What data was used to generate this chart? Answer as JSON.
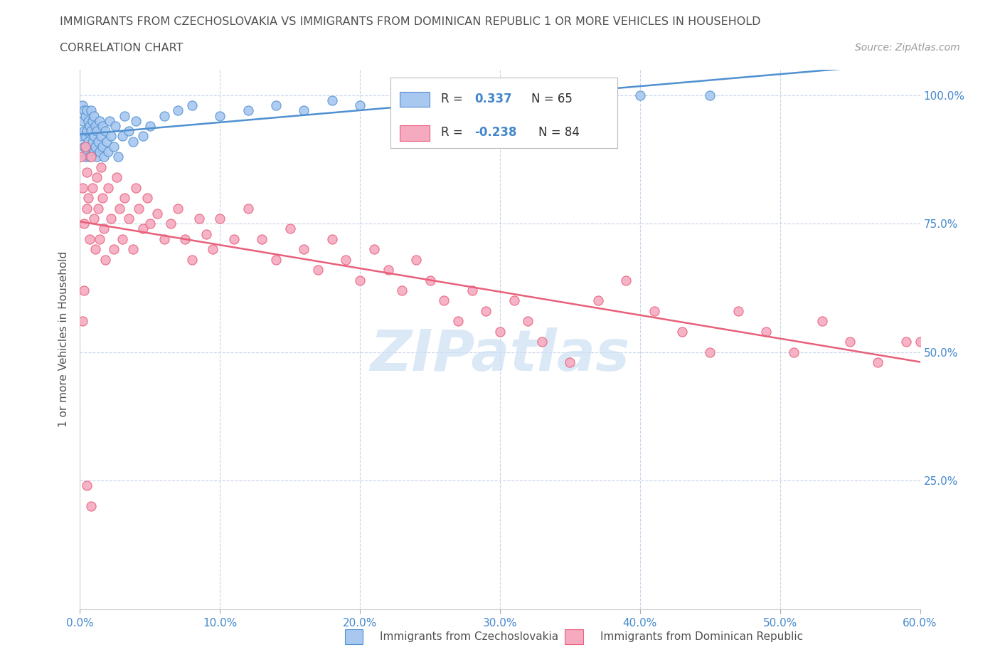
{
  "title_line1": "IMMIGRANTS FROM CZECHOSLOVAKIA VS IMMIGRANTS FROM DOMINICAN REPUBLIC 1 OR MORE VEHICLES IN HOUSEHOLD",
  "title_line2": "CORRELATION CHART",
  "source_text": "Source: ZipAtlas.com",
  "ylabel": "1 or more Vehicles in Household",
  "xlim": [
    0.0,
    0.6
  ],
  "ylim": [
    0.0,
    1.05
  ],
  "xtick_values": [
    0.0,
    0.1,
    0.2,
    0.3,
    0.4,
    0.5,
    0.6
  ],
  "xtick_labels": [
    "0.0%",
    "10.0%",
    "20.0%",
    "30.0%",
    "40.0%",
    "50.0%",
    "60.0%"
  ],
  "ytick_values": [
    0.25,
    0.5,
    0.75,
    1.0
  ],
  "ytick_labels": [
    "25.0%",
    "50.0%",
    "75.0%",
    "100.0%"
  ],
  "color_czech": "#a8c8f0",
  "color_dominican": "#f5aac0",
  "trendline_color_czech": "#5090d0",
  "trendline_color_dominican": "#e8607a",
  "R_czech": 0.337,
  "N_czech": 65,
  "R_dominican": -0.238,
  "N_dominican": 84,
  "watermark_text": "ZIPatlas",
  "watermark_color": "#cce0f5",
  "legend_label_czech": "Immigrants from Czechoslovakia",
  "legend_label_dominican": "Immigrants from Dominican Republic",
  "background_color": "#ffffff",
  "grid_color": "#c8d4e8",
  "title_color": "#505050",
  "axis_label_color": "#505050",
  "tick_label_color_blue": "#4488cc",
  "legend_R_color": "#4488cc",
  "legend_N_color": "#303030",
  "czech_x": [
    0.001,
    0.002,
    0.002,
    0.003,
    0.003,
    0.003,
    0.004,
    0.004,
    0.004,
    0.005,
    0.005,
    0.005,
    0.006,
    0.006,
    0.007,
    0.007,
    0.008,
    0.008,
    0.008,
    0.009,
    0.009,
    0.01,
    0.01,
    0.01,
    0.011,
    0.011,
    0.012,
    0.012,
    0.013,
    0.014,
    0.014,
    0.015,
    0.016,
    0.016,
    0.017,
    0.018,
    0.019,
    0.02,
    0.021,
    0.022,
    0.024,
    0.025,
    0.027,
    0.03,
    0.032,
    0.035,
    0.038,
    0.04,
    0.045,
    0.05,
    0.06,
    0.07,
    0.08,
    0.1,
    0.12,
    0.14,
    0.16,
    0.18,
    0.2,
    0.23,
    0.26,
    0.3,
    0.35,
    0.4,
    0.45
  ],
  "czech_y": [
    0.92,
    0.95,
    0.98,
    0.9,
    0.93,
    0.97,
    0.88,
    0.92,
    0.96,
    0.89,
    0.93,
    0.97,
    0.91,
    0.95,
    0.88,
    0.94,
    0.9,
    0.93,
    0.97,
    0.91,
    0.95,
    0.89,
    0.92,
    0.96,
    0.9,
    0.94,
    0.88,
    0.93,
    0.91,
    0.89,
    0.95,
    0.92,
    0.9,
    0.94,
    0.88,
    0.93,
    0.91,
    0.89,
    0.95,
    0.92,
    0.9,
    0.94,
    0.88,
    0.92,
    0.96,
    0.93,
    0.91,
    0.95,
    0.92,
    0.94,
    0.96,
    0.97,
    0.98,
    0.96,
    0.97,
    0.98,
    0.97,
    0.99,
    0.98,
    0.99,
    0.99,
    1.0,
    1.0,
    1.0,
    1.0
  ],
  "dominican_x": [
    0.001,
    0.002,
    0.003,
    0.004,
    0.005,
    0.005,
    0.006,
    0.007,
    0.008,
    0.009,
    0.01,
    0.011,
    0.012,
    0.013,
    0.014,
    0.015,
    0.016,
    0.017,
    0.018,
    0.02,
    0.022,
    0.024,
    0.026,
    0.028,
    0.03,
    0.032,
    0.035,
    0.038,
    0.04,
    0.042,
    0.045,
    0.048,
    0.05,
    0.055,
    0.06,
    0.065,
    0.07,
    0.075,
    0.08,
    0.085,
    0.09,
    0.095,
    0.1,
    0.11,
    0.12,
    0.13,
    0.14,
    0.15,
    0.16,
    0.17,
    0.18,
    0.19,
    0.2,
    0.21,
    0.22,
    0.23,
    0.24,
    0.25,
    0.26,
    0.27,
    0.28,
    0.29,
    0.3,
    0.31,
    0.32,
    0.33,
    0.35,
    0.37,
    0.39,
    0.41,
    0.43,
    0.45,
    0.47,
    0.49,
    0.51,
    0.53,
    0.55,
    0.57,
    0.59,
    0.6,
    0.002,
    0.003,
    0.005,
    0.008
  ],
  "dominican_y": [
    0.88,
    0.82,
    0.75,
    0.9,
    0.78,
    0.85,
    0.8,
    0.72,
    0.88,
    0.82,
    0.76,
    0.7,
    0.84,
    0.78,
    0.72,
    0.86,
    0.8,
    0.74,
    0.68,
    0.82,
    0.76,
    0.7,
    0.84,
    0.78,
    0.72,
    0.8,
    0.76,
    0.7,
    0.82,
    0.78,
    0.74,
    0.8,
    0.75,
    0.77,
    0.72,
    0.75,
    0.78,
    0.72,
    0.68,
    0.76,
    0.73,
    0.7,
    0.76,
    0.72,
    0.78,
    0.72,
    0.68,
    0.74,
    0.7,
    0.66,
    0.72,
    0.68,
    0.64,
    0.7,
    0.66,
    0.62,
    0.68,
    0.64,
    0.6,
    0.56,
    0.62,
    0.58,
    0.54,
    0.6,
    0.56,
    0.52,
    0.48,
    0.6,
    0.64,
    0.58,
    0.54,
    0.5,
    0.58,
    0.54,
    0.5,
    0.56,
    0.52,
    0.48,
    0.52,
    0.52,
    0.56,
    0.62,
    0.24,
    0.2
  ]
}
